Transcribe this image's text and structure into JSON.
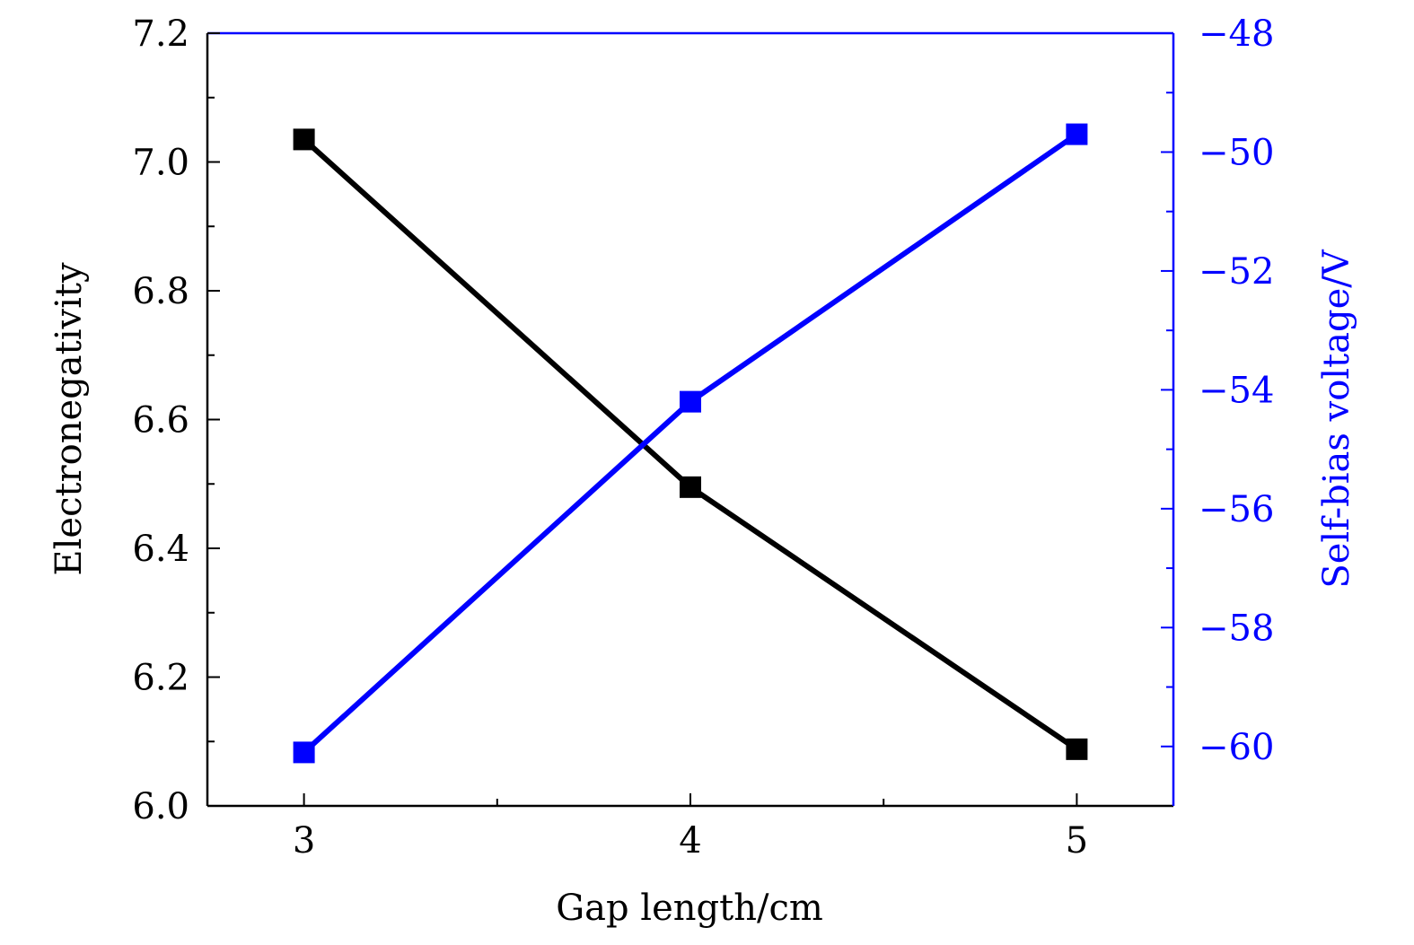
{
  "chart_data": {
    "type": "line",
    "title": "",
    "xlabel": "Gap length/cm",
    "ylabel": "Electronegativity",
    "y2label": "Self-bias voltage/V",
    "x": [
      3,
      4,
      5
    ],
    "xlim": [
      2.75,
      5.25
    ],
    "ylim": [
      6.0,
      7.2
    ],
    "y2lim": [
      -61,
      -48
    ],
    "x_ticks": [
      3,
      4,
      5
    ],
    "x_tick_labels": [
      "3",
      "4",
      "5"
    ],
    "y_ticks": [
      6.0,
      6.2,
      6.4,
      6.6,
      6.8,
      7.0,
      7.2
    ],
    "y_tick_labels": [
      "6.0",
      "6.2",
      "6.4",
      "6.6",
      "6.8",
      "7.0",
      "7.2"
    ],
    "y2_ticks": [
      -60,
      -58,
      -56,
      -54,
      -52,
      -50,
      -48
    ],
    "y2_tick_labels": [
      "−60",
      "−58",
      "−56",
      "−54",
      "−52",
      "−50",
      "−48"
    ],
    "grid": false,
    "series": [
      {
        "axis": "left",
        "color": "#000000",
        "marker": "square",
        "values": [
          7.035,
          6.495,
          6.088
        ]
      },
      {
        "axis": "right",
        "color": "#0000ff",
        "marker": "square",
        "values": [
          -60.1,
          -54.2,
          -49.7
        ]
      }
    ]
  }
}
